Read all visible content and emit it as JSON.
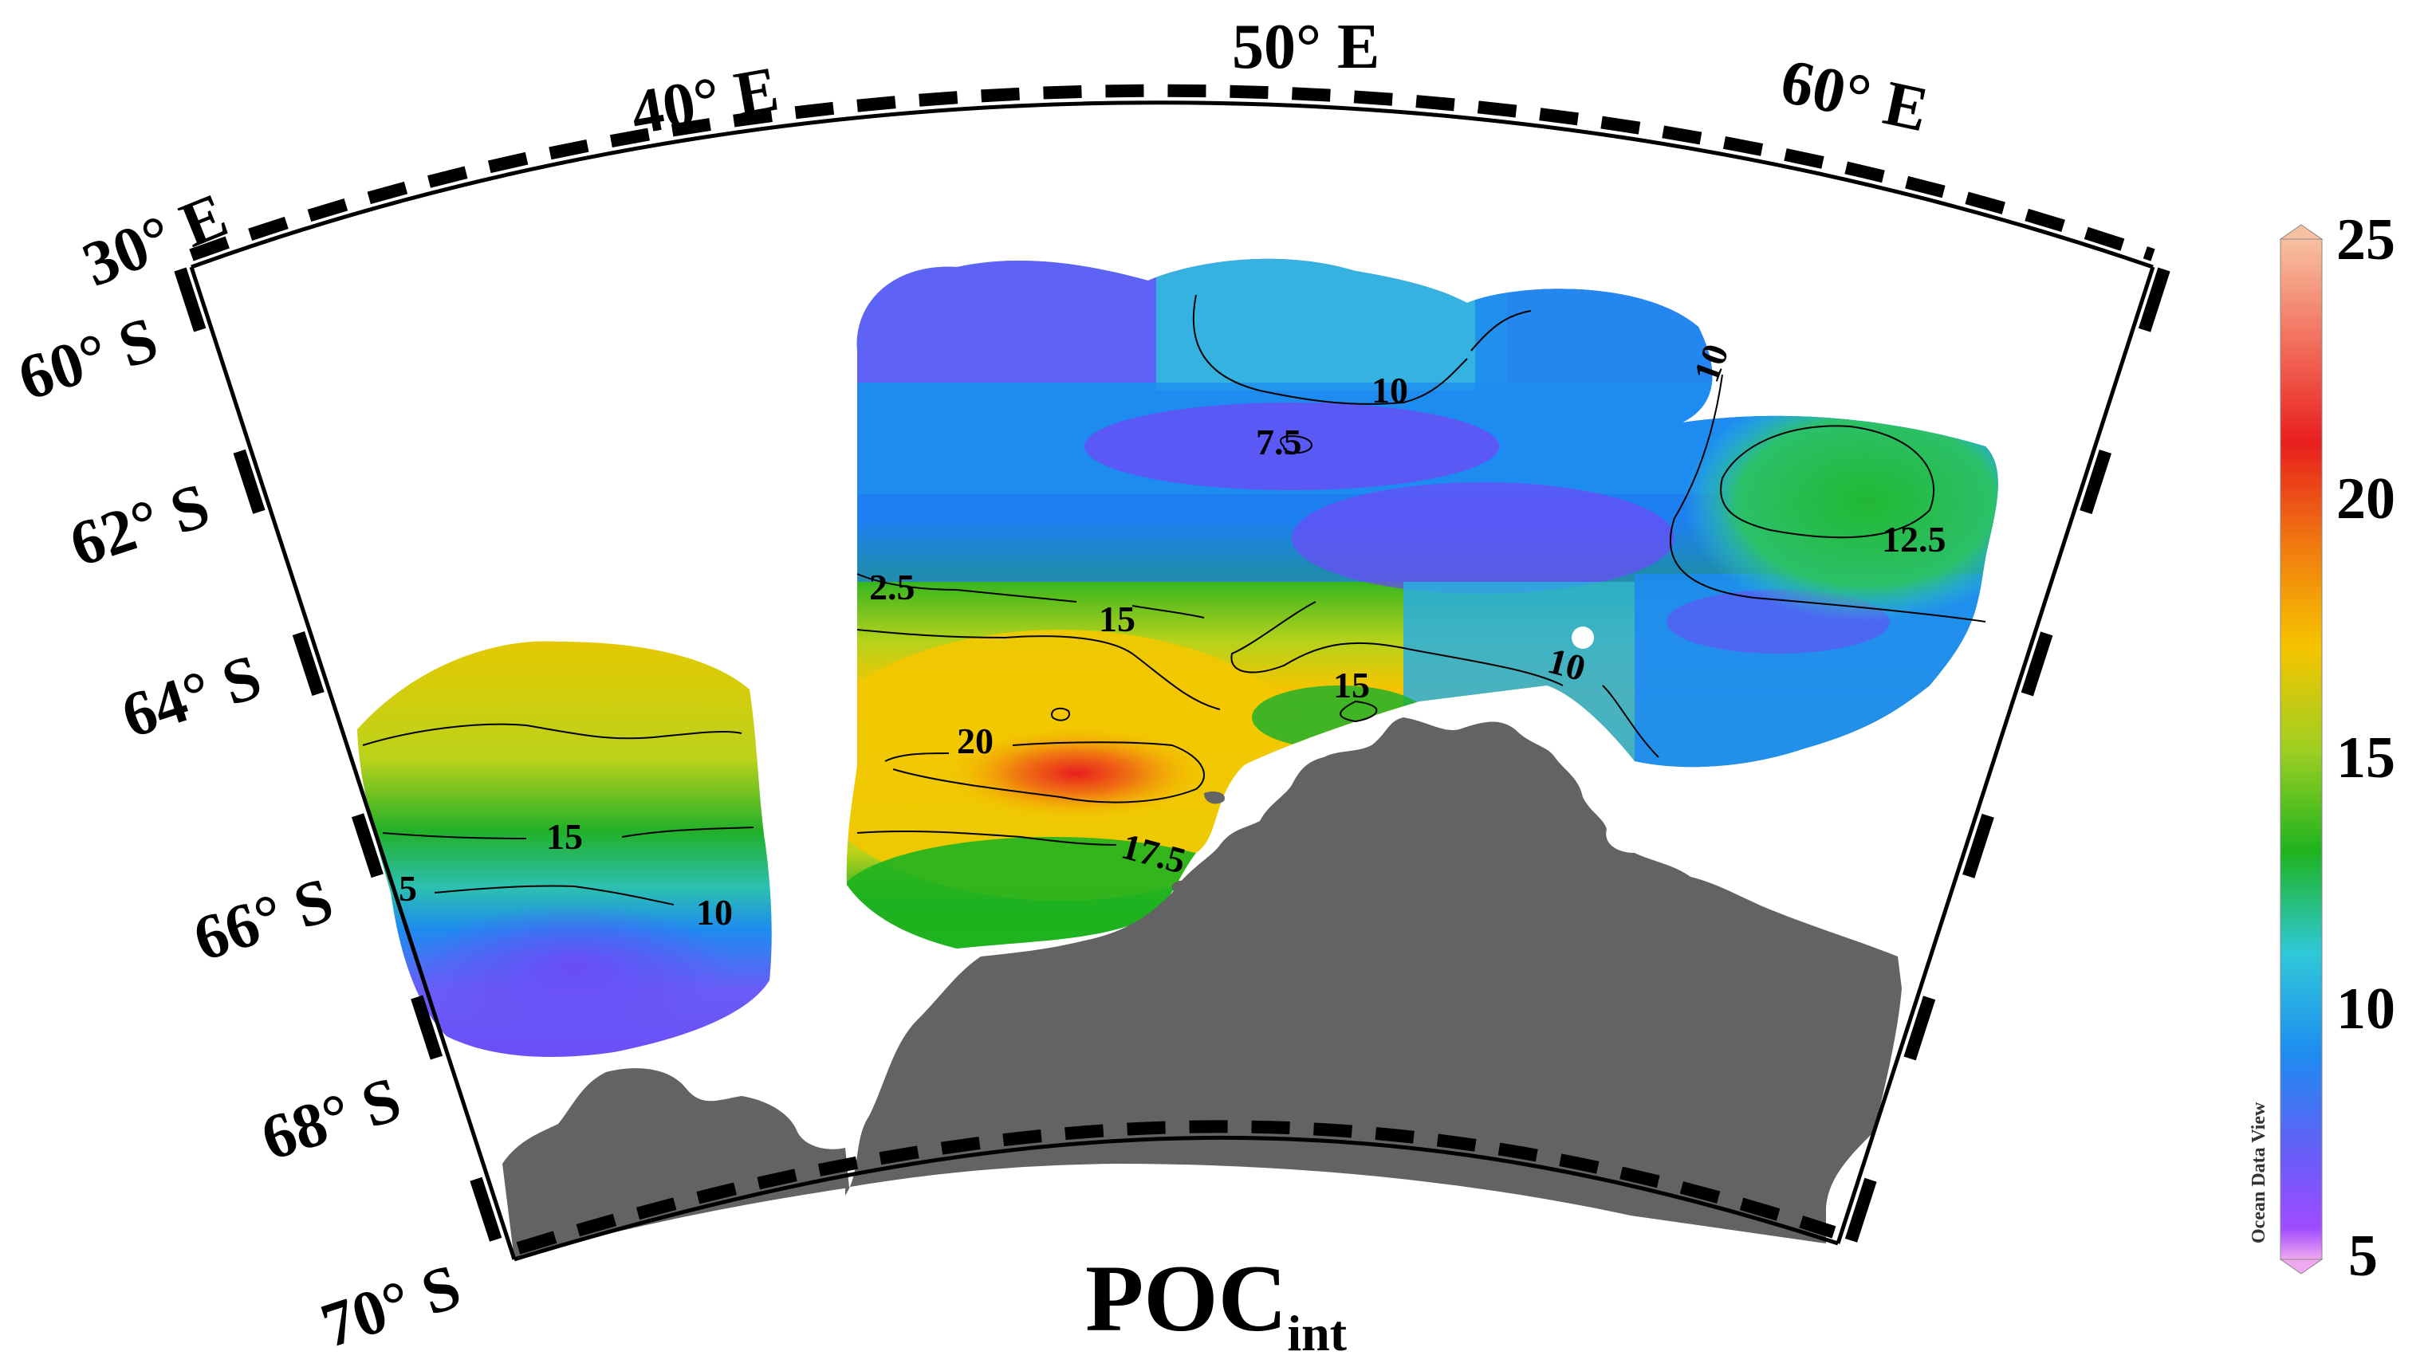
{
  "title": {
    "main": "POC",
    "subscript": "int"
  },
  "longitude_labels": [
    "30° E",
    "40° E",
    "50° E",
    "60° E"
  ],
  "latitude_labels": [
    "60° S",
    "62° S",
    "64° S",
    "66° S",
    "68° S",
    "70° S"
  ],
  "contour_labels": [
    "10",
    "7.5",
    "10",
    "12.5",
    "2.5",
    "15",
    "10",
    "15",
    "20",
    "15",
    "17.5",
    "5",
    "10"
  ],
  "colorbar": {
    "ticks": [
      "25",
      "20",
      "15",
      "10",
      "5"
    ],
    "watermark": "Ocean Data View",
    "colors": [
      "#f6b8e4",
      "#a04cff",
      "#6a5cf7",
      "#1e8bf0",
      "#2fc8d8",
      "#1fb31f",
      "#b8d320",
      "#f6c400",
      "#f07a10",
      "#e81f1f",
      "#f7b0a0"
    ]
  },
  "colors": {
    "land": "#636363",
    "frame": "#000000",
    "contour": "#000000"
  }
}
